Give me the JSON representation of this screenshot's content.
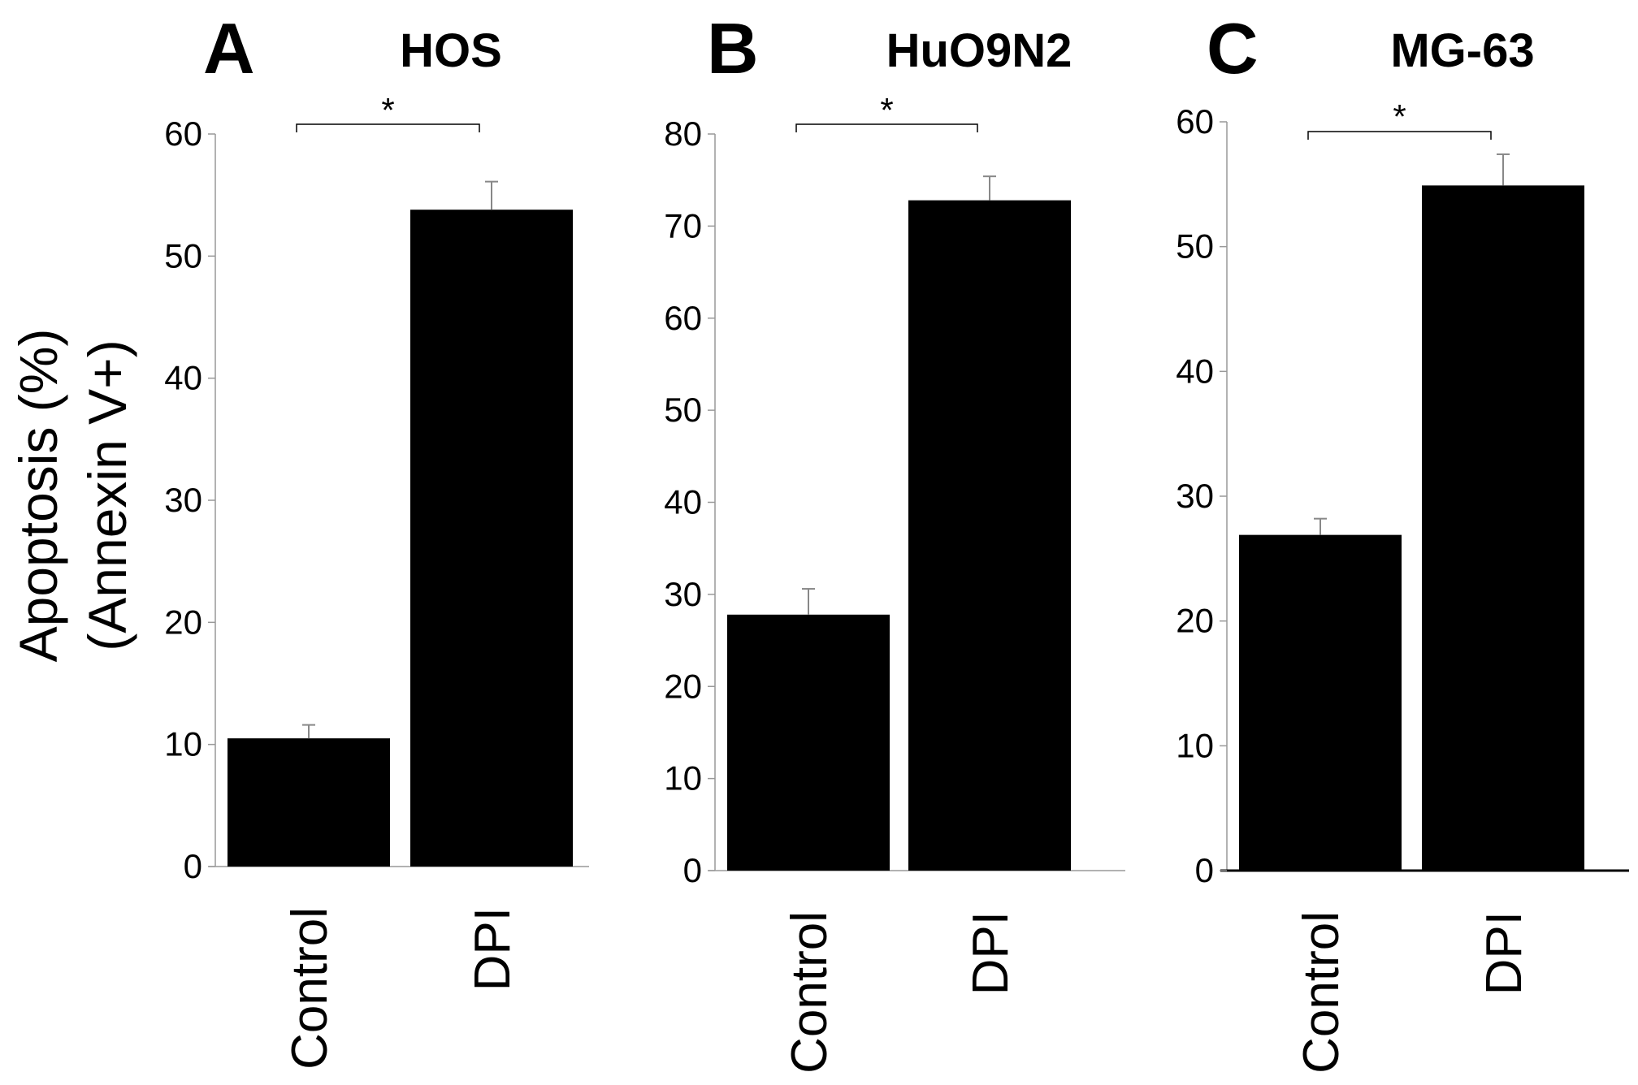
{
  "chart_data": {
    "ylabel_lines": [
      "Apoptosis (%)",
      "(Annexin V+)"
    ],
    "panels": [
      {
        "type": "bar",
        "letter": "A",
        "title": "HOS",
        "categories": [
          "Control",
          "DPI"
        ],
        "values": [
          10.5,
          53.8
        ],
        "errors": [
          1.1,
          2.3
        ],
        "ylim": [
          0,
          60
        ],
        "yticks": [
          0,
          10,
          20,
          30,
          40,
          50,
          60
        ],
        "significance": "*",
        "bar_color": "#000000"
      },
      {
        "type": "bar",
        "letter": "B",
        "title": "HuO9N2",
        "categories": [
          "Control",
          "DPI"
        ],
        "values": [
          27.8,
          72.8
        ],
        "errors": [
          2.8,
          2.6
        ],
        "ylim": [
          0,
          80
        ],
        "yticks": [
          0,
          10,
          20,
          30,
          40,
          50,
          60,
          70,
          80
        ],
        "significance": "*",
        "bar_color": "#000000"
      },
      {
        "type": "bar",
        "letter": "C",
        "title": "MG-63",
        "categories": [
          "Control",
          "DPI"
        ],
        "values": [
          26.9,
          54.9
        ],
        "errors": [
          1.3,
          2.5
        ],
        "ylim": [
          0,
          60
        ],
        "yticks": [
          0,
          10,
          20,
          30,
          40,
          50,
          60
        ],
        "significance": "*",
        "bar_color": "#000000"
      }
    ]
  }
}
